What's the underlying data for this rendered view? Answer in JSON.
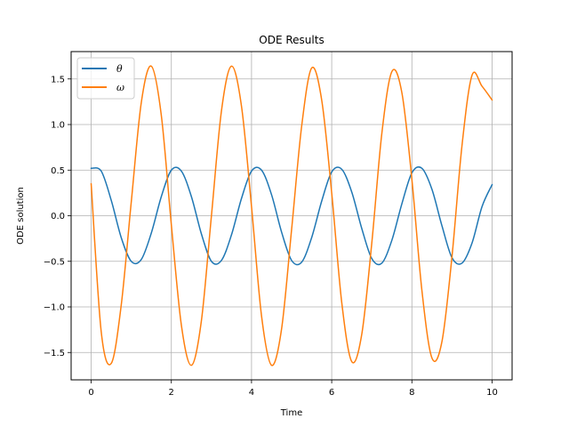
{
  "chart_data": {
    "type": "line",
    "title": "ODE Results",
    "xlabel": "Time",
    "ylabel": "ODE solution",
    "xlim": [
      -0.5,
      10.5
    ],
    "ylim": [
      -1.8,
      1.8
    ],
    "xticks": [
      0,
      2,
      4,
      6,
      8,
      10
    ],
    "xtick_labels": [
      "0",
      "2",
      "4",
      "6",
      "8",
      "10"
    ],
    "yticks": [
      -1.5,
      -1.0,
      -0.5,
      0.0,
      0.5,
      1.0,
      1.5
    ],
    "ytick_labels": [
      "−1.5",
      "−1.0",
      "−0.5",
      "0.0",
      "0.5",
      "1.0",
      "1.5"
    ],
    "grid": true,
    "legend_position": "upper-left",
    "series": [
      {
        "name": "θ",
        "color": "#1f77b4",
        "x": [
          0,
          0.25,
          0.5,
          0.75,
          1.0,
          1.25,
          1.5,
          1.75,
          2.0,
          2.25,
          2.5,
          2.75,
          3.0,
          3.25,
          3.5,
          3.75,
          4.0,
          4.25,
          4.5,
          4.75,
          5.0,
          5.25,
          5.5,
          5.75,
          6.0,
          6.25,
          6.5,
          6.75,
          7.0,
          7.25,
          7.5,
          7.75,
          8.0,
          8.25,
          8.5,
          8.75,
          9.0,
          9.25,
          9.5,
          9.75,
          10.0
        ],
        "y": [
          0.52,
          0.49,
          0.17,
          -0.24,
          -0.5,
          -0.48,
          -0.19,
          0.21,
          0.5,
          0.49,
          0.21,
          -0.2,
          -0.5,
          -0.49,
          -0.21,
          0.19,
          0.49,
          0.5,
          0.23,
          -0.18,
          -0.49,
          -0.51,
          -0.24,
          0.16,
          0.48,
          0.51,
          0.26,
          -0.14,
          -0.47,
          -0.52,
          -0.27,
          0.13,
          0.47,
          0.52,
          0.29,
          -0.11,
          -0.46,
          -0.52,
          -0.3,
          0.1,
          0.34
        ]
      },
      {
        "name": "ω",
        "color": "#ff7f0e",
        "x": [
          0,
          0.25,
          0.5,
          0.75,
          1.0,
          1.25,
          1.5,
          1.75,
          2.0,
          2.25,
          2.5,
          2.75,
          3.0,
          3.25,
          3.5,
          3.75,
          4.0,
          4.25,
          4.5,
          4.75,
          5.0,
          5.25,
          5.5,
          5.75,
          6.0,
          6.25,
          6.5,
          6.75,
          7.0,
          7.25,
          7.5,
          7.75,
          8.0,
          8.25,
          8.5,
          8.75,
          9.0,
          9.25,
          9.5,
          9.75,
          10.0
        ],
        "y": [
          0.35,
          -1.27,
          -1.62,
          -0.98,
          0.15,
          1.24,
          1.64,
          1.1,
          -0.1,
          -1.2,
          -1.64,
          -1.15,
          0.0,
          1.15,
          1.64,
          1.2,
          0.1,
          -1.1,
          -1.64,
          -1.24,
          -0.15,
          0.98,
          1.62,
          1.27,
          0.25,
          -0.95,
          -1.6,
          -1.3,
          -0.3,
          0.9,
          1.58,
          1.35,
          0.4,
          -0.82,
          -1.56,
          -1.38,
          -0.45,
          0.77,
          1.54,
          1.42,
          1.27
        ]
      }
    ]
  }
}
